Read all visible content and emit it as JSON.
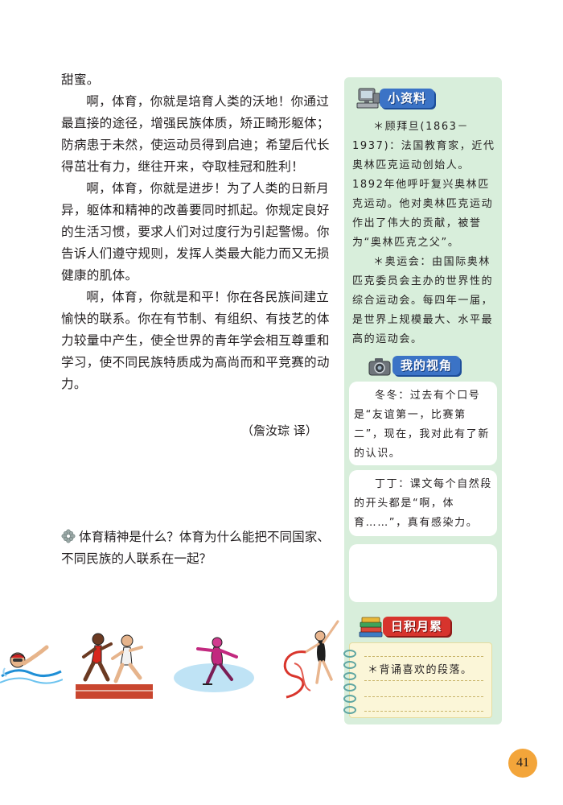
{
  "main": {
    "paragraphs": [
      "甜蜜。",
      "啊，体育，你就是培育人类的沃地！你通过最直接的途径，增强民族体质，矫正畸形躯体；防病患于未然，使运动员得到启迪；希望后代长得茁壮有力，继往开来，夺取桂冠和胜利！",
      "啊，体育，你就是进步！为了人类的日新月异，躯体和精神的改善要同时抓起。你规定良好的生活习惯，要求人们对过度行为引起警惕。你告诉人们遵守规则，发挥人类最大能力而又无损健康的肌体。",
      "啊，体育，你就是和平！你在各民族间建立愉快的联系。你在有节制、有组织、有技艺的体力较量中产生，使全世界的青年学会相互尊重和学习，使不同民族特质成为高尚而和平竞赛的动力。"
    ],
    "translator": "（詹汝琮  译）",
    "question": "体育精神是什么？体育为什么能把不同国家、不同民族的人联系在一起？"
  },
  "sidebar": {
    "ziliao": {
      "title": "小资料",
      "paragraphs": [
        "＊顾拜旦(1863－1937)：法国教育家，近代奥林匹克运动创始人。1892年他呼吁复兴奥林匹克运动。他对奥林匹克运动作出了伟大的贡献，被誉为“奥林匹克之父”。",
        "＊奥运会：由国际奥林匹克委员会主办的世界性的综合运动会。每四年一届，是世界上规模最大、水平最高的运动会。"
      ]
    },
    "shijiao": {
      "title": "我的视角",
      "bubble1": "冬冬：过去有个口号是“友谊第一，比赛第二”，现在，我对此有了新的认识。",
      "bubble2": "丁丁：课文每个自然段的开头都是“啊，体育……”，真有感染力。",
      "bubble3": ""
    },
    "rijilei": {
      "title": "日积月累",
      "note": "＊背诵喜欢的段落。"
    }
  },
  "page_number": "41",
  "colors": {
    "sidebar_bg": "#d8eedb",
    "heading_blue": "#3b73c6",
    "heading_red": "#d7342d",
    "page_badge": "#f3a53a"
  }
}
